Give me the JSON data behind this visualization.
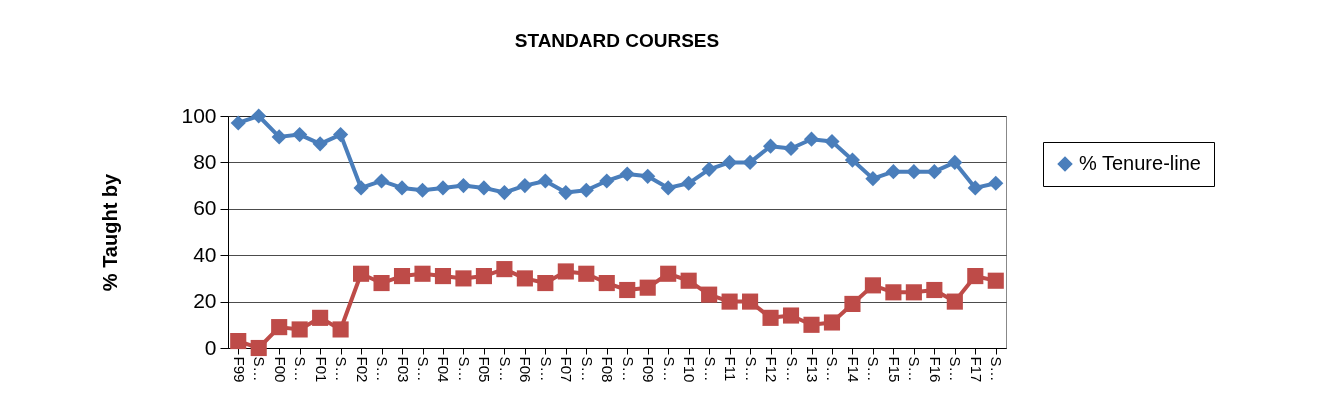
{
  "chart_data": {
    "type": "line",
    "title": "STANDARD COURSES",
    "ylabel": "% Taught by",
    "categories": [
      "F99",
      "S…",
      "F00",
      "S…",
      "F01",
      "S…",
      "F02",
      "S…",
      "F03",
      "S…",
      "F04",
      "S…",
      "F05",
      "S…",
      "F06",
      "S…",
      "F07",
      "S…",
      "F08",
      "S…",
      "F09",
      "S…",
      "F10",
      "S…",
      "F11",
      "S…",
      "F12",
      "S…",
      "F13",
      "S…",
      "F14",
      "S…",
      "F15",
      "S…",
      "F16",
      "S…",
      "F17",
      "S…"
    ],
    "series": [
      {
        "name": "% Tenure-line",
        "color": "#4a7ebb",
        "marker": "diamond",
        "values": [
          97,
          100,
          91,
          92,
          88,
          92,
          69,
          72,
          69,
          68,
          69,
          70,
          69,
          67,
          70,
          72,
          67,
          68,
          72,
          75,
          74,
          69,
          71,
          77,
          80,
          80,
          87,
          86,
          90,
          89,
          81,
          73,
          76,
          76,
          76,
          80,
          69,
          71
        ]
      },
      {
        "color": "#be4b48",
        "marker": "square",
        "values": [
          3,
          0,
          9,
          8,
          13,
          8,
          32,
          28,
          31,
          32,
          31,
          30,
          31,
          34,
          30,
          28,
          33,
          32,
          28,
          25,
          26,
          32,
          29,
          23,
          20,
          20,
          13,
          14,
          10,
          11,
          19,
          27,
          24,
          24,
          25,
          20,
          31,
          29
        ]
      }
    ],
    "ylim": [
      0,
      100
    ],
    "yticks": [
      0,
      20,
      40,
      60,
      80,
      100
    ],
    "grid": "y",
    "legend": "right"
  }
}
